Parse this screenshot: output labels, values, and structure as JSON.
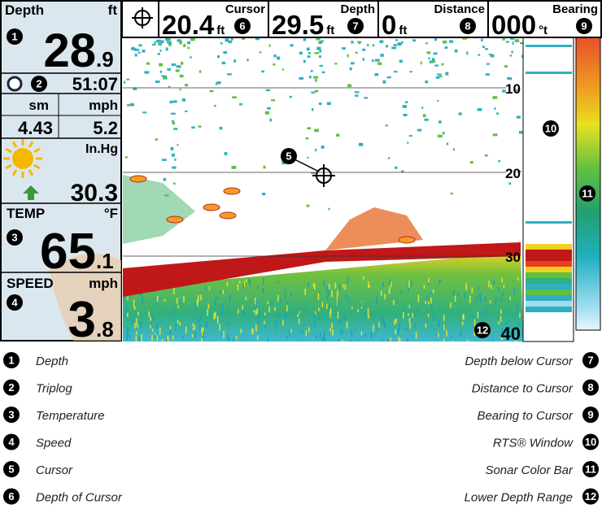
{
  "left_panel": {
    "depth": {
      "label": "Depth",
      "unit": "ft",
      "value": "28",
      "decimal": ".9"
    },
    "triplog": {
      "time": "51:07",
      "unit_distance": "sm",
      "unit_speed": "mph",
      "distance": "4.43",
      "speed": "5.2"
    },
    "pressure": {
      "unit": "In.Hg",
      "value": "30.3"
    },
    "temperature": {
      "label": "TEMP",
      "unit": "°F",
      "value": "65",
      "decimal": ".1"
    },
    "speed": {
      "label": "SPEED",
      "unit": "mph",
      "value": "3",
      "decimal": ".8"
    }
  },
  "top_bar": [
    {
      "value": "20.4",
      "unit": "ft",
      "label": "Cursor"
    },
    {
      "value": "29.5",
      "unit": "ft",
      "label": "Depth"
    },
    {
      "value": "0",
      "unit": "ft",
      "label": "Distance"
    },
    {
      "value": "000",
      "unit": "°t",
      "label": "Bearing"
    }
  ],
  "depth_scale": [
    "10",
    "20",
    "30",
    "40"
  ],
  "callouts": [
    "1",
    "2",
    "3",
    "4",
    "5",
    "6",
    "7",
    "8",
    "9",
    "10",
    "11",
    "12"
  ],
  "legend": [
    {
      "number": "1",
      "label": "Depth"
    },
    {
      "number": "2",
      "label": "Triplog"
    },
    {
      "number": "3",
      "label": "Temperature"
    },
    {
      "number": "4",
      "label": "Speed"
    },
    {
      "number": "5",
      "label": "Cursor"
    },
    {
      "number": "6",
      "label": "Depth of Cursor"
    },
    {
      "number": "7",
      "label": "Depth below Cursor"
    },
    {
      "number": "8",
      "label": "Distance to Cursor"
    },
    {
      "number": "9",
      "label": "Bearing to Cursor"
    },
    {
      "number": "10",
      "label": "RTS® Window"
    },
    {
      "number": "11",
      "label": "Sonar Color Bar"
    },
    {
      "number": "12",
      "label": "Lower Depth Range"
    }
  ]
}
